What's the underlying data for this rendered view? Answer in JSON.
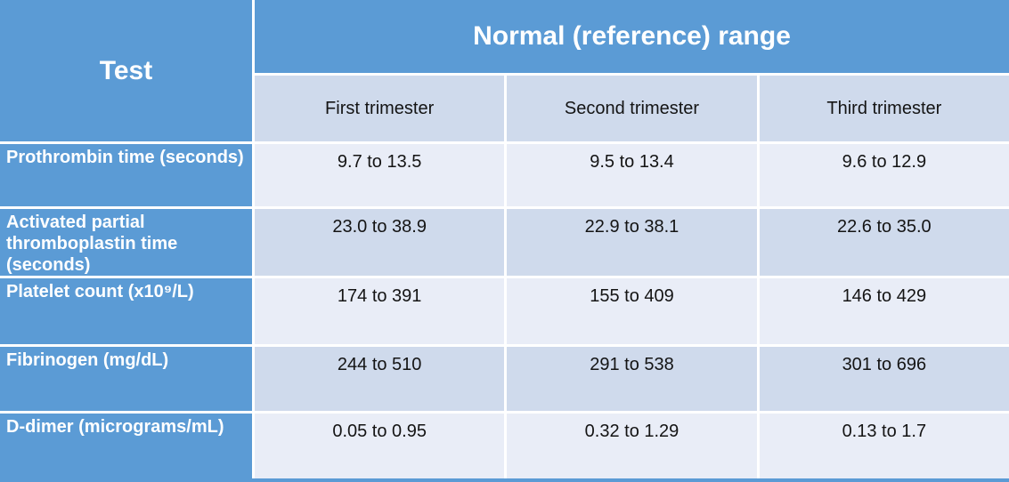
{
  "colors": {
    "header_blue": "#5B9BD5",
    "band_light": "#E9EDF7",
    "band_dark": "#CFDAEC",
    "border_white": "#FFFFFF",
    "header_text": "#FFFFFF",
    "body_text": "#141414"
  },
  "table": {
    "corner": "Test",
    "group_header": "Normal (reference) range",
    "columns": [
      "First trimester",
      "Second trimester",
      "Third trimester"
    ],
    "rows": [
      {
        "label": "Prothrombin time (seconds)",
        "values": [
          "9.7 to 13.5",
          "9.5 to 13.4",
          "9.6 to 12.9"
        ]
      },
      {
        "label": "Activated partial thromboplastin time (seconds)",
        "values": [
          "23.0 to 38.9",
          "22.9 to 38.1",
          "22.6 to 35.0"
        ]
      },
      {
        "label": "Platelet count (x10⁹/L)",
        "values": [
          "174 to 391",
          "155 to 409",
          "146 to 429"
        ]
      },
      {
        "label": "Fibrinogen (mg/dL)",
        "values": [
          "244 to 510",
          "291 to 538",
          "301 to 696"
        ]
      },
      {
        "label": "D-dimer (micrograms/mL)",
        "values": [
          "0.05 to 0.95",
          "0.32 to 1.29",
          "0.13 to 1.7"
        ]
      }
    ]
  }
}
